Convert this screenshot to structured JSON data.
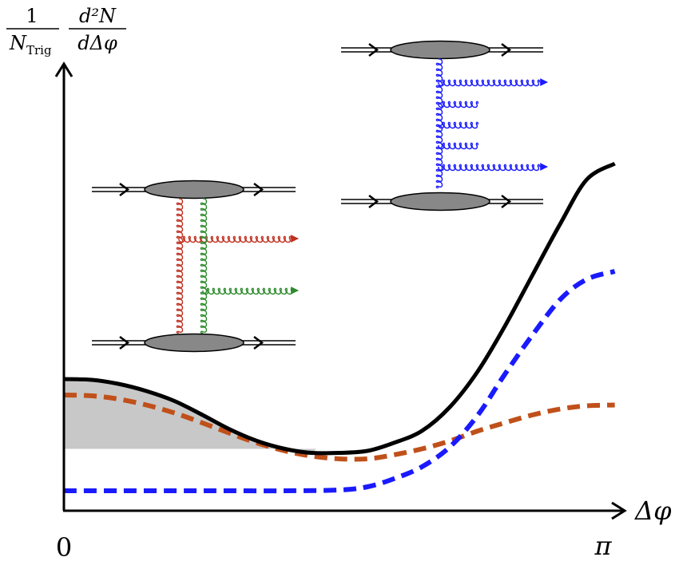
{
  "y_axis_label": {
    "numerator": "1",
    "trig_denominator": "N",
    "trig_subscript": "Trig",
    "deriv_numerator": "d²N",
    "deriv_denominator": "dΔφ"
  },
  "x_axis_label": "Δφ",
  "x_ticks": {
    "start": "0",
    "end": "π"
  },
  "chart_data": {
    "type": "line",
    "x_range": [
      0,
      3.1416
    ],
    "xlabel": "Δφ",
    "ylabel": "1/N_Trig d²N/dΔφ",
    "series": [
      {
        "style": "solid",
        "color": "#000000",
        "x": [
          0,
          0.16,
          0.31,
          0.47,
          0.63,
          0.79,
          0.94,
          1.1,
          1.26,
          1.41,
          1.57,
          1.73,
          1.88,
          2.04,
          2.2,
          2.36,
          2.51,
          2.67,
          2.83,
          2.98,
          3.14
        ],
        "y": [
          0.33,
          0.328,
          0.318,
          0.3,
          0.275,
          0.24,
          0.205,
          0.175,
          0.155,
          0.145,
          0.145,
          0.15,
          0.17,
          0.2,
          0.26,
          0.35,
          0.46,
          0.59,
          0.72,
          0.83,
          0.87
        ]
      },
      {
        "style": "dashed",
        "color": "#1a1aff",
        "x": [
          0,
          0.31,
          0.63,
          0.94,
          1.26,
          1.57,
          1.73,
          1.88,
          2.04,
          2.2,
          2.36,
          2.51,
          2.67,
          2.83,
          2.98,
          3.14
        ],
        "y": [
          0.05,
          0.05,
          0.05,
          0.05,
          0.05,
          0.052,
          0.06,
          0.08,
          0.11,
          0.16,
          0.24,
          0.34,
          0.44,
          0.53,
          0.58,
          0.6
        ]
      },
      {
        "style": "dashed",
        "color": "#c0501a",
        "x": [
          0,
          0.16,
          0.31,
          0.47,
          0.63,
          0.79,
          0.94,
          1.1,
          1.26,
          1.41,
          1.57,
          1.73,
          1.88,
          2.04,
          2.2,
          2.36,
          2.51,
          2.67,
          2.83,
          2.98,
          3.14
        ],
        "y": [
          0.29,
          0.288,
          0.28,
          0.265,
          0.245,
          0.22,
          0.195,
          0.17,
          0.15,
          0.137,
          0.13,
          0.13,
          0.14,
          0.155,
          0.175,
          0.2,
          0.22,
          0.24,
          0.255,
          0.263,
          0.265
        ]
      }
    ],
    "shaded_region": {
      "x_range": [
        0,
        1.44
      ],
      "baseline_y": 0.155,
      "color": "#c8c8c8"
    }
  },
  "diagrams": [
    {
      "name": "two-gluon-exchange",
      "colors": [
        "#c03020",
        "#2e8b2e"
      ],
      "emitted_gluons": 2
    },
    {
      "name": "single-ladder",
      "colors": [
        "#1a1aff"
      ],
      "emitted_gluons": 2,
      "rungs": 4
    }
  ]
}
